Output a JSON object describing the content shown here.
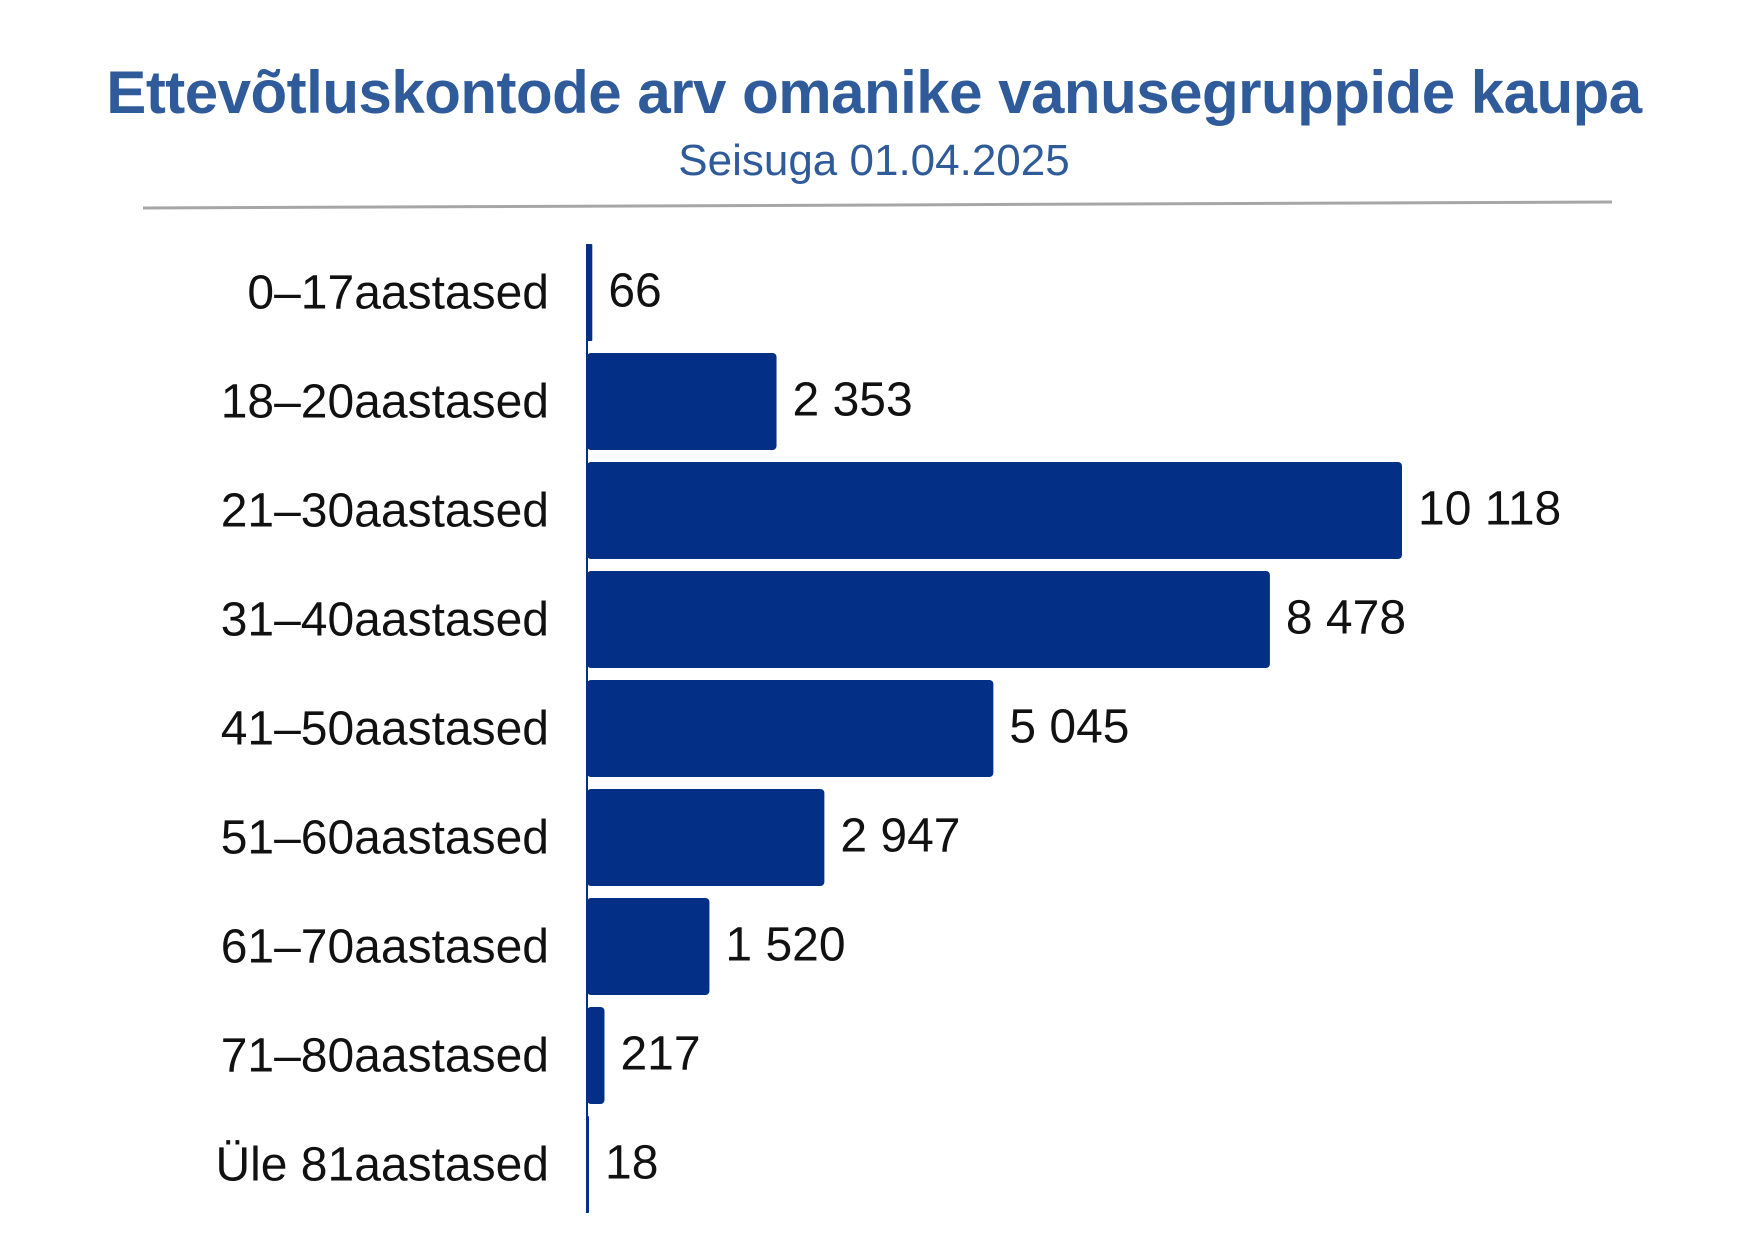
{
  "chart_data": {
    "type": "bar",
    "orientation": "horizontal",
    "title": "Ettevõtluskontode arv omanike vanusegruppide kaupa",
    "subtitle": "Seisuga 01.04.2025",
    "categories": [
      "0–17aastased",
      "18–20aastased",
      "21–30aastased",
      "31–40aastased",
      "41–50aastased",
      "51–60aastased",
      "61–70aastased",
      "71–80aastased",
      "Üle 81aastased"
    ],
    "values": [
      66,
      2353,
      10118,
      8478,
      5045,
      2947,
      1520,
      217,
      18
    ],
    "value_labels": [
      "66",
      "2 353",
      "10 118",
      "8 478",
      "5 045",
      "2 947",
      "1 520",
      "217",
      "18"
    ],
    "xlim": [
      0,
      10118
    ],
    "grid": false,
    "legend": "none",
    "colors": {
      "bar": "#032f87",
      "title": "#2f5b9a",
      "divider": "#a6a6a6"
    }
  }
}
